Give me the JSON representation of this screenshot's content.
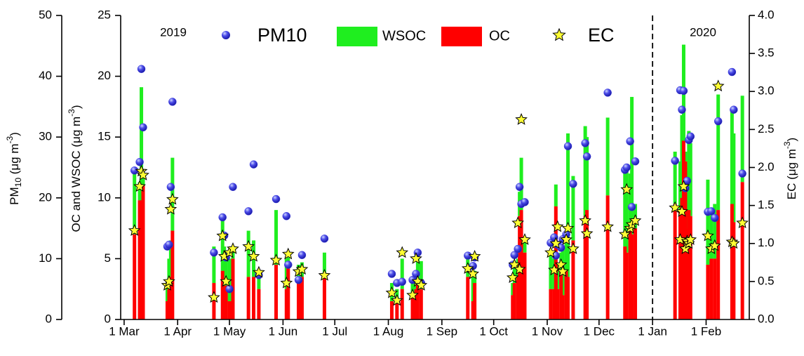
{
  "chart_data": {
    "type": "combo",
    "annotations": [
      "2019",
      "2020"
    ],
    "divider": "2020-01-01",
    "xlim": [
      "2019-02-27",
      "2020-02-26"
    ],
    "xticks": [
      {
        "value": "2019-03-01",
        "label": "1 Mar"
      },
      {
        "value": "2019-04-01",
        "label": "1 Apr"
      },
      {
        "value": "2019-05-01",
        "label": "1 May"
      },
      {
        "value": "2019-06-01",
        "label": "1 Jun"
      },
      {
        "value": "2019-07-01",
        "label": "1 Jul"
      },
      {
        "value": "2019-08-01",
        "label": "1 Aug"
      },
      {
        "value": "2019-09-01",
        "label": "1 Sep"
      },
      {
        "value": "2019-10-01",
        "label": "1 Oct"
      },
      {
        "value": "2019-11-01",
        "label": "1 Nov"
      },
      {
        "value": "2019-12-01",
        "label": "1 Dec"
      },
      {
        "value": "2020-01-01",
        "label": "1 Jan"
      },
      {
        "value": "2020-02-01",
        "label": "1 Feb"
      }
    ],
    "ylabel": [
      "OC and WSOC (μg m",
      "-3",
      ")"
    ],
    "ylim": [
      0,
      25
    ],
    "yticks": [
      0,
      5,
      10,
      15,
      20,
      25
    ],
    "y2label": [
      "EC (μg m",
      "-3",
      ")"
    ],
    "y2lim": [
      0,
      4
    ],
    "y2ticks": [
      {
        "value": 0,
        "label": "0.0"
      },
      0.5,
      {
        "value": 1,
        "label": "1.0"
      },
      1.5,
      {
        "value": 2,
        "label": "2.0"
      },
      2.5,
      {
        "value": 3,
        "label": "3.0"
      },
      3.5,
      {
        "value": 4,
        "label": "4.0"
      }
    ],
    "y3label": [
      "PM",
      "10",
      " (μg m",
      "-3",
      ")"
    ],
    "y3lim": [
      0,
      50
    ],
    "y3ticks": [
      0,
      10,
      20,
      30,
      40,
      50
    ],
    "x": [
      "2019-03-07",
      "2019-03-10",
      "2019-03-11",
      "2019-03-12",
      "2019-03-26",
      "2019-03-27",
      "2019-03-28",
      "2019-03-29",
      "2019-04-22",
      "2019-04-27",
      "2019-04-28",
      "2019-04-29",
      "2019-05-01",
      "2019-05-03",
      "2019-05-12",
      "2019-05-15",
      "2019-05-18",
      "2019-05-28",
      "2019-06-03",
      "2019-06-04",
      "2019-06-10",
      "2019-06-12",
      "2019-06-25",
      "2019-08-03",
      "2019-08-06",
      "2019-08-09",
      "2019-08-15",
      "2019-08-17",
      "2019-08-18",
      "2019-08-20",
      "2019-09-16",
      "2019-09-19",
      "2019-09-20",
      "2019-10-12",
      "2019-10-13",
      "2019-10-15",
      "2019-10-16",
      "2019-10-17",
      "2019-10-19",
      "2019-11-03",
      "2019-11-05",
      "2019-11-06",
      "2019-11-07",
      "2019-11-09",
      "2019-11-10",
      "2019-11-12",
      "2019-11-13",
      "2019-11-16",
      "2019-11-23",
      "2019-11-24",
      "2019-12-06",
      "2019-12-16",
      "2019-12-17",
      "2019-12-19",
      "2019-12-20",
      "2019-12-22",
      "2020-01-14",
      "2020-01-17",
      "2020-01-18",
      "2020-01-19",
      "2020-01-20",
      "2020-01-21",
      "2020-01-22",
      "2020-01-23",
      "2020-02-02",
      "2020-02-04",
      "2020-02-06",
      "2020-02-08",
      "2020-02-16",
      "2020-02-17",
      "2020-02-22"
    ],
    "series": [
      {
        "name": "PM10",
        "kind": "scatter",
        "marker": "circle",
        "axis": "y3",
        "color": "#3b3bdc",
        "values": [
          24.5,
          25.9,
          41.2,
          31.6,
          12.0,
          12.3,
          21.8,
          35.8,
          11.0,
          16.8,
          13.8,
          10.2,
          5.0,
          21.8,
          17.8,
          25.5,
          7.3,
          19.8,
          17.0,
          9.0,
          6.5,
          10.6,
          13.3,
          7.5,
          6.0,
          6.2,
          6.5,
          7.5,
          11.0,
          6.0,
          10.5,
          8.8,
          10.2,
          9.0,
          10.6,
          11.6,
          21.8,
          19.0,
          19.3,
          12.6,
          13.5,
          10.5,
          12.3,
          11.8,
          13.2,
          14.0,
          28.5,
          22.3,
          29.0,
          26.8,
          37.3,
          24.6,
          25.0,
          29.3,
          18.5,
          26.0,
          26.1,
          37.7,
          34.5,
          37.6,
          21.6,
          22.8,
          29.5,
          30.1,
          17.7,
          17.8,
          16.7,
          32.6,
          40.7,
          34.5,
          24.0
        ]
      },
      {
        "name": "WSOC",
        "kind": "bar",
        "stack_on": "OC",
        "color": "#1fee1f",
        "values": [
          5.0,
          1.5,
          14.2,
          1.0,
          1.5,
          2.5,
          3.0,
          6.0,
          3.0,
          4.5,
          3.5,
          2.5,
          3.5,
          1.0,
          3.8,
          3.0,
          1.5,
          4.5,
          2.5,
          0.8,
          1.5,
          1.2,
          2.0,
          1.5,
          1.0,
          2.5,
          1.0,
          1.0,
          2.5,
          2.3,
          1.5,
          2.5,
          1.0,
          1.0,
          1.5,
          1.5,
          2.0,
          4.3,
          1.0,
          3.0,
          2.5,
          1.8,
          2.0,
          1.5,
          4.0,
          2.5,
          11.8,
          5.3,
          7.4,
          6.0,
          6.4,
          6.5,
          6.8,
          4.5,
          11.3,
          2.0,
          4.3,
          4.0,
          6.8,
          7.9,
          0.8,
          5.0,
          6.5,
          6.0,
          7.0,
          4.0,
          4.5,
          9.5,
          7.8,
          7.3,
          7.1
        ]
      },
      {
        "name": "OC",
        "kind": "bar",
        "color": "#ff0000",
        "values": [
          7.0,
          9.8,
          4.9,
          11.0,
          1.5,
          2.5,
          3.5,
          7.3,
          3.0,
          4.0,
          2.5,
          2.8,
          1.5,
          5.0,
          3.5,
          3.5,
          2.5,
          4.5,
          2.5,
          4.3,
          3.0,
          3.5,
          3.5,
          1.5,
          1.5,
          2.5,
          2.0,
          2.5,
          3.0,
          2.5,
          3.5,
          1.5,
          3.0,
          2.0,
          3.0,
          3.5,
          8.5,
          9.0,
          5.5,
          2.5,
          2.5,
          9.3,
          2.5,
          4.0,
          2.0,
          4.0,
          3.5,
          6.5,
          8.5,
          9.0,
          10.2,
          6.0,
          5.5,
          7.5,
          7.0,
          7.5,
          9.5,
          9.0,
          10.0,
          14.7,
          13.0,
          7.5,
          9.0,
          8.5,
          4.5,
          5.0,
          5.0,
          9.0,
          9.5,
          8.0,
          11.3
        ]
      },
      {
        "name": "EC",
        "kind": "scatter",
        "marker": "star",
        "axis": "y2",
        "color": "#ffff33",
        "values": [
          1.17,
          1.75,
          1.95,
          1.9,
          0.45,
          0.5,
          1.45,
          1.58,
          0.29,
          1.1,
          0.83,
          0.5,
          0.88,
          0.93,
          0.96,
          0.83,
          0.62,
          0.78,
          0.48,
          0.86,
          0.63,
          0.66,
          0.58,
          0.35,
          0.25,
          0.88,
          0.32,
          0.8,
          0.5,
          0.45,
          0.67,
          0.6,
          0.83,
          0.55,
          0.72,
          1.27,
          0.66,
          2.63,
          1.05,
          0.88,
          0.65,
          1.0,
          1.22,
          0.72,
          0.63,
          1.05,
          1.2,
          0.93,
          1.3,
          1.13,
          1.22,
          1.12,
          1.71,
          1.2,
          1.25,
          1.3,
          1.47,
          1.05,
          1.42,
          1.75,
          0.93,
          1.03,
          1.0,
          1.05,
          1.1,
          0.93,
          0.97,
          3.07,
          1.02,
          1.0,
          1.27
        ]
      }
    ]
  }
}
